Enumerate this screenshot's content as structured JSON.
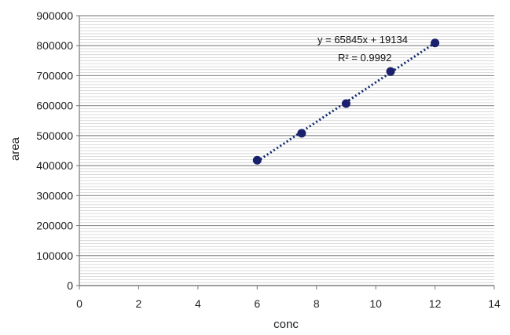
{
  "chart_data": {
    "type": "scatter",
    "title": "",
    "xlabel": "conc",
    "ylabel": "area",
    "xlim": [
      0,
      14
    ],
    "ylim": [
      0,
      900000
    ],
    "x_ticks": [
      "0",
      "2",
      "4",
      "6",
      "8",
      "10",
      "12",
      "14"
    ],
    "y_ticks": [
      "0",
      "100000",
      "200000",
      "300000",
      "400000",
      "500000",
      "600000",
      "700000",
      "800000",
      "900000"
    ],
    "grid": true,
    "legend": "none",
    "series": [
      {
        "x": [
          6,
          7.5,
          9,
          10.5,
          12
        ],
        "y": [
          418000,
          508000,
          607000,
          714000,
          809000
        ]
      }
    ],
    "trendline": {
      "type": "linear",
      "slope": 65845,
      "intercept": 19134,
      "equation": "y = 65845x + 19134",
      "r_squared": "R² = 0.9992"
    },
    "colors": {
      "marker": "#1a1f6e",
      "trendline": "#0d2a6b",
      "major_grid": "#8c8c8c",
      "minor_grid": "#d2d2d2"
    }
  }
}
